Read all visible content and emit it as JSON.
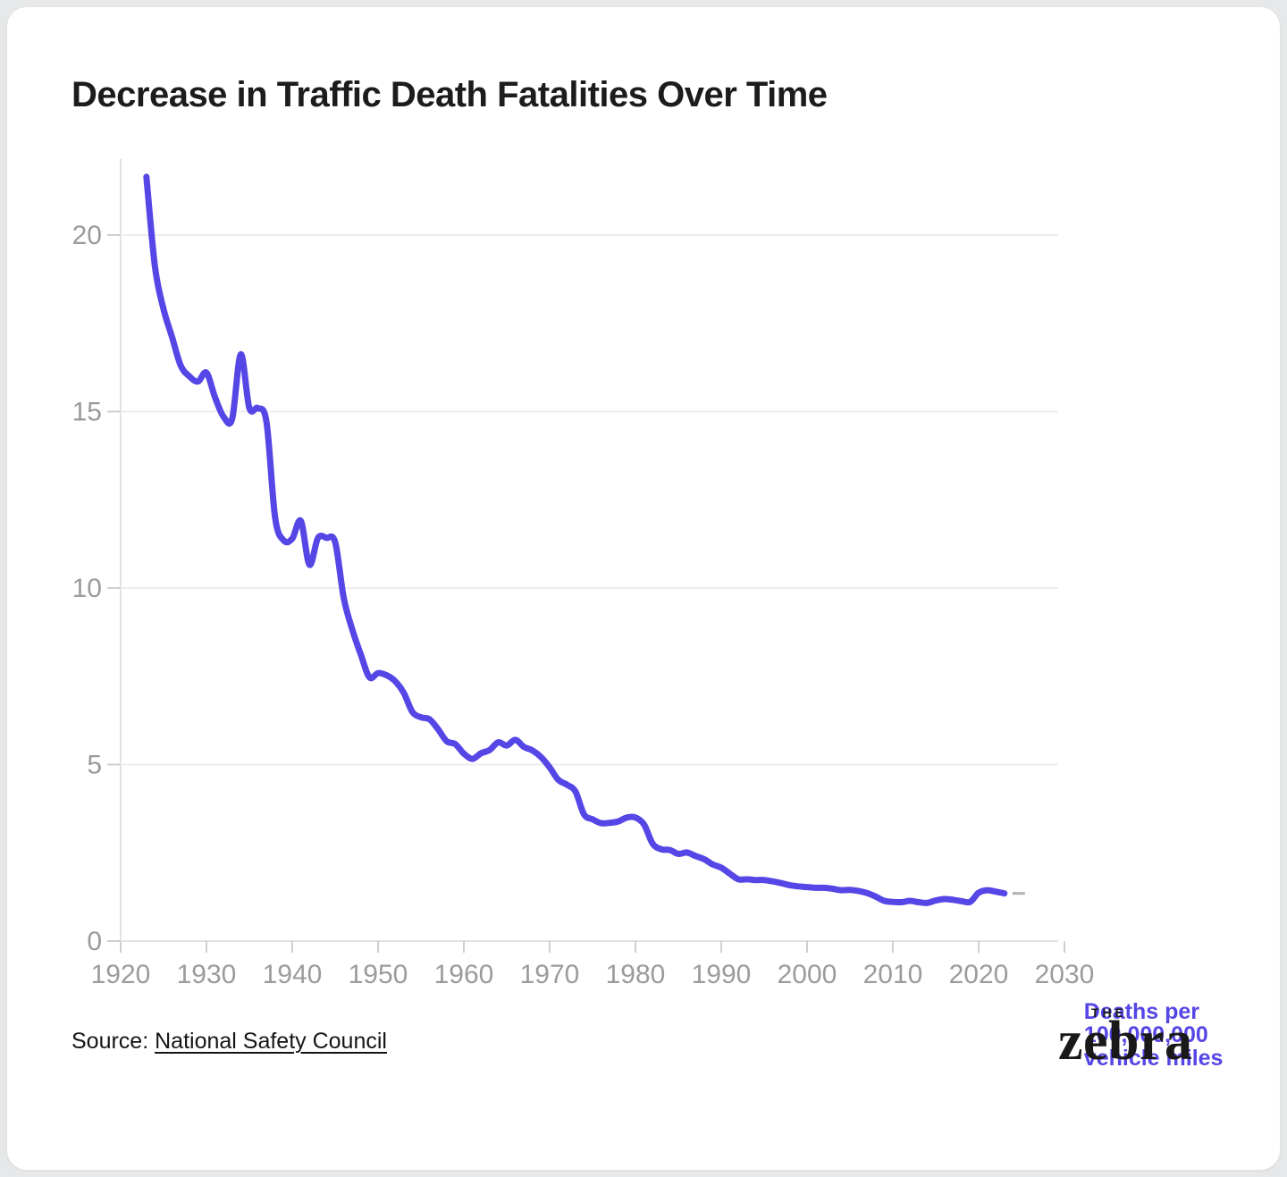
{
  "page": {
    "background": "#e7e8e9",
    "card_background": "#ffffff"
  },
  "header": {
    "title": "Decrease in Traffic Death Fatalities Over Time"
  },
  "chart_data": {
    "type": "line",
    "title": "Decrease in Traffic Death Fatalities Over Time",
    "series_label": "Deaths per 100,000,000 vehicle miles",
    "annotation_lines": [
      "Deaths per",
      "100,000,000",
      "vehicle miles"
    ],
    "line_color": "#5546e6",
    "grid": true,
    "legend_position": "end-of-line annotation",
    "xlabel": "",
    "ylabel": "",
    "xlim": [
      1920,
      2034
    ],
    "ylim": [
      0,
      22
    ],
    "x_ticks": [
      1920,
      1930,
      1940,
      1950,
      1960,
      1970,
      1980,
      1990,
      2000,
      2010,
      2020,
      2030
    ],
    "y_ticks": [
      0,
      5,
      10,
      15,
      20
    ],
    "x": [
      1923,
      1924,
      1925,
      1926,
      1927,
      1928,
      1929,
      1930,
      1931,
      1932,
      1933,
      1934,
      1935,
      1936,
      1937,
      1938,
      1939,
      1940,
      1941,
      1942,
      1943,
      1944,
      1945,
      1946,
      1947,
      1948,
      1949,
      1950,
      1951,
      1952,
      1953,
      1954,
      1955,
      1956,
      1957,
      1958,
      1959,
      1960,
      1961,
      1962,
      1963,
      1964,
      1965,
      1966,
      1967,
      1968,
      1969,
      1970,
      1971,
      1972,
      1973,
      1974,
      1975,
      1976,
      1977,
      1978,
      1979,
      1980,
      1981,
      1982,
      1983,
      1984,
      1985,
      1986,
      1987,
      1988,
      1989,
      1990,
      1991,
      1992,
      1993,
      1994,
      1995,
      1996,
      1997,
      1998,
      1999,
      2000,
      2001,
      2002,
      2003,
      2004,
      2005,
      2006,
      2007,
      2008,
      2009,
      2010,
      2011,
      2012,
      2013,
      2014,
      2015,
      2016,
      2017,
      2018,
      2019,
      2020,
      2021,
      2022,
      2023
    ],
    "values": [
      21.65,
      19.1,
      17.9,
      17.1,
      16.3,
      16.0,
      15.85,
      16.1,
      15.4,
      14.85,
      14.8,
      16.62,
      15.1,
      15.1,
      14.7,
      12.0,
      11.35,
      11.4,
      11.9,
      10.66,
      11.42,
      11.42,
      11.3,
      9.72,
      8.82,
      8.11,
      7.47,
      7.59,
      7.53,
      7.36,
      7.03,
      6.49,
      6.34,
      6.28,
      6.0,
      5.66,
      5.58,
      5.31,
      5.16,
      5.32,
      5.41,
      5.63,
      5.54,
      5.7,
      5.5,
      5.4,
      5.21,
      4.92,
      4.57,
      4.43,
      4.24,
      3.59,
      3.45,
      3.34,
      3.35,
      3.39,
      3.5,
      3.5,
      3.3,
      2.76,
      2.6,
      2.58,
      2.47,
      2.51,
      2.41,
      2.32,
      2.17,
      2.08,
      1.91,
      1.75,
      1.75,
      1.73,
      1.73,
      1.69,
      1.64,
      1.58,
      1.55,
      1.53,
      1.51,
      1.51,
      1.48,
      1.44,
      1.45,
      1.42,
      1.36,
      1.26,
      1.14,
      1.11,
      1.1,
      1.14,
      1.1,
      1.08,
      1.15,
      1.19,
      1.17,
      1.13,
      1.11,
      1.37,
      1.44,
      1.4,
      1.35
    ]
  },
  "footer": {
    "source_prefix": "Source: ",
    "source_link": "National Safety Council"
  },
  "logo": {
    "top": "THE",
    "name": "zebra"
  }
}
